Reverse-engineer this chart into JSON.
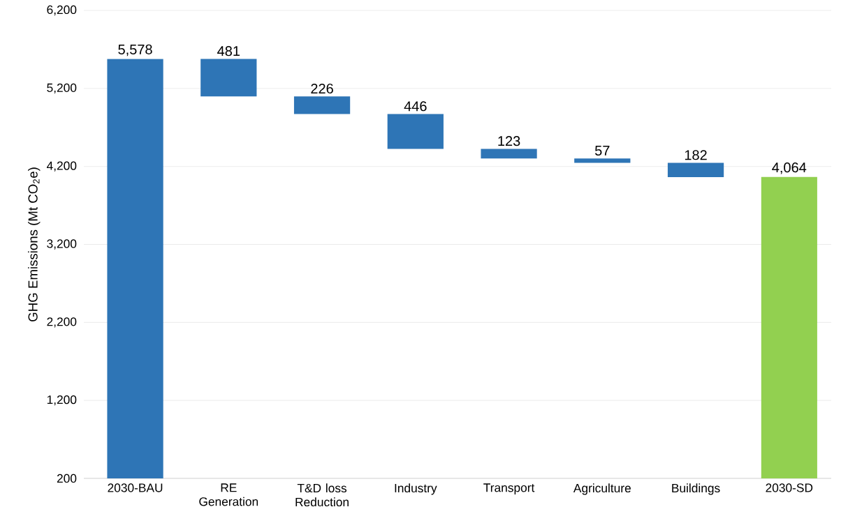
{
  "chart_data": {
    "type": "bar",
    "ylabel": "GHG Emissions (Mt CO$_{2}$e)",
    "categories": [
      "2030-BAU",
      "RE Generation",
      "T&D loss Reduction",
      "Industry",
      "Transport",
      "Agriculture",
      "Buildings",
      "2030-SD"
    ],
    "values": [
      5578,
      481,
      226,
      446,
      123,
      57,
      182,
      4064
    ],
    "base": [
      null,
      5097,
      4871,
      4425,
      4302,
      4245,
      4063,
      null
    ],
    "value_labels": [
      "5,578",
      "481",
      "226",
      "446",
      "123",
      "57",
      "182",
      "4,064"
    ],
    "colors": [
      "#2e75b6",
      "#2e75b6",
      "#2e75b6",
      "#2e75b6",
      "#2e75b6",
      "#2e75b6",
      "#2e75b6",
      "#92d050"
    ],
    "ylim": [
      200,
      6200
    ],
    "yticks": [
      200,
      {
        "value": 1200,
        "label": "1,200"
      },
      {
        "value": 2200,
        "label": "2,200"
      },
      {
        "value": 3200,
        "label": "3,200"
      },
      {
        "value": 4200,
        "label": "4,200"
      },
      {
        "value": 5200,
        "label": "5,200"
      },
      {
        "value": 6200,
        "label": "6,200"
      }
    ],
    "grid": "y"
  }
}
